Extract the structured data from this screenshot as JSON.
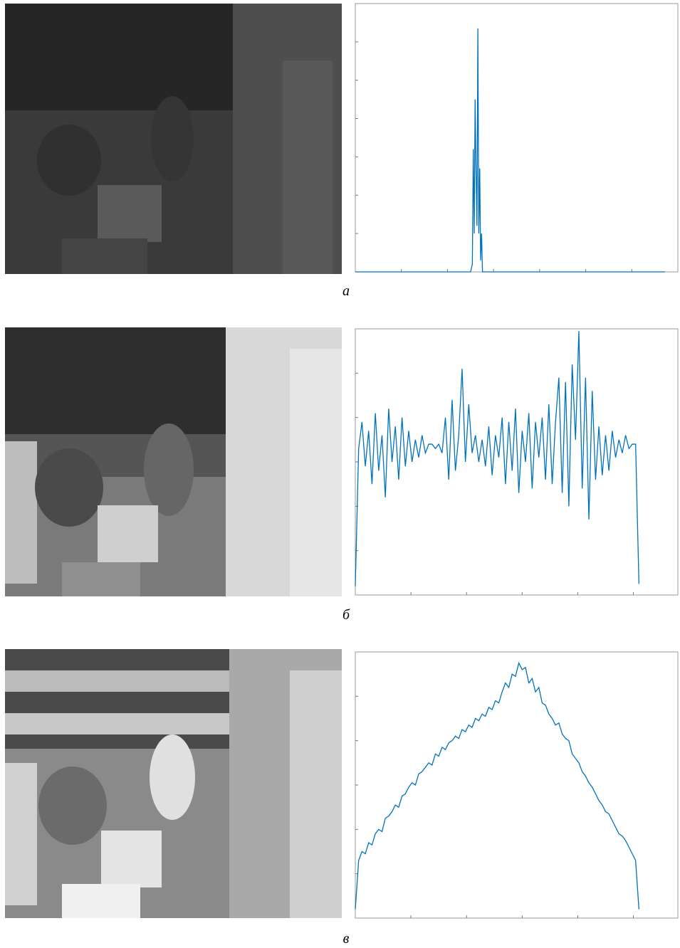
{
  "chart_data": [
    {
      "type": "line",
      "caption": "а",
      "color": "#0072bd",
      "x": [
        0,
        250,
        254,
        256,
        258,
        260,
        262,
        264,
        266,
        268,
        270,
        272,
        274,
        276,
        672
      ],
      "values": [
        0,
        0,
        200,
        3200,
        1000,
        4500,
        2600,
        1200,
        6350,
        1000,
        2700,
        300,
        1000,
        0,
        0
      ],
      "xlim": [
        0,
        700
      ],
      "ylim": [
        0,
        7000
      ],
      "xticks": [
        100,
        200,
        300,
        400,
        500,
        600
      ],
      "yticks": [
        1000,
        2000,
        3000,
        4000,
        5000,
        6000
      ]
    },
    {
      "type": "line",
      "caption": "б",
      "color": "#0072bd",
      "x": [
        0,
        6,
        12,
        18,
        24,
        30,
        36,
        42,
        48,
        54,
        60,
        66,
        72,
        78,
        84,
        90,
        96,
        102,
        108,
        114,
        120,
        126,
        132,
        138,
        144,
        150,
        156,
        162,
        168,
        174,
        180,
        186,
        192,
        198,
        204,
        210,
        216,
        222,
        228,
        234,
        240,
        246,
        252,
        258,
        264,
        270,
        276,
        282,
        288,
        294,
        300,
        306,
        312,
        318,
        324,
        330,
        336,
        342,
        348,
        354,
        360,
        366,
        372,
        378,
        384,
        390,
        396,
        402,
        408,
        414,
        420,
        426,
        432,
        438,
        444,
        450,
        456,
        462,
        468,
        474,
        480,
        486,
        492,
        498,
        504,
        510
      ],
      "values": [
        0.2,
        3.3,
        3.9,
        2.9,
        3.7,
        2.5,
        4.1,
        2.8,
        3.6,
        2.2,
        4.2,
        3.0,
        3.8,
        2.6,
        4.0,
        2.9,
        3.7,
        3.0,
        3.5,
        3.1,
        3.6,
        3.2,
        3.4,
        3.4,
        3.3,
        3.4,
        3.2,
        4.0,
        2.6,
        4.4,
        2.8,
        3.6,
        5.1,
        3.0,
        4.3,
        3.2,
        3.6,
        3.0,
        3.5,
        2.9,
        3.8,
        2.7,
        3.6,
        3.1,
        4.0,
        2.5,
        3.9,
        2.8,
        4.2,
        2.3,
        3.7,
        3.0,
        4.1,
        2.4,
        3.9,
        3.1,
        4.0,
        2.6,
        4.3,
        2.5,
        3.9,
        4.9,
        2.3,
        4.8,
        2.0,
        5.2,
        3.5,
        5.95,
        2.4,
        4.9,
        1.7,
        4.6,
        2.6,
        3.8,
        2.7,
        3.6,
        2.8,
        3.7,
        3.1,
        3.5,
        3.2,
        3.6,
        3.3,
        3.4,
        3.4,
        0.25
      ],
      "xlim": [
        0,
        580
      ],
      "ylim": [
        0,
        6
      ],
      "xticks": [
        100,
        200,
        300,
        400,
        500
      ],
      "yticks": [
        1,
        2,
        3,
        4,
        5
      ]
    },
    {
      "type": "line",
      "caption": "в",
      "color": "#0072bd",
      "x": [
        0,
        6,
        12,
        18,
        24,
        30,
        36,
        42,
        48,
        54,
        60,
        66,
        72,
        78,
        84,
        90,
        96,
        102,
        108,
        114,
        120,
        126,
        132,
        138,
        144,
        150,
        156,
        162,
        168,
        174,
        180,
        186,
        192,
        198,
        204,
        210,
        216,
        222,
        228,
        234,
        240,
        246,
        252,
        258,
        264,
        270,
        276,
        282,
        288,
        294,
        300,
        306,
        312,
        318,
        324,
        330,
        336,
        342,
        348,
        354,
        360,
        366,
        372,
        378,
        384,
        390,
        396,
        402,
        408,
        414,
        420,
        426,
        432,
        438,
        444,
        450,
        456,
        462,
        468,
        474,
        480,
        486,
        492,
        498,
        504,
        510
      ],
      "values": [
        0.2,
        1.3,
        1.5,
        1.45,
        1.7,
        1.65,
        1.9,
        2.0,
        1.95,
        2.25,
        2.3,
        2.4,
        2.55,
        2.5,
        2.75,
        2.8,
        2.95,
        3.05,
        3.0,
        3.25,
        3.3,
        3.4,
        3.5,
        3.45,
        3.7,
        3.65,
        3.85,
        3.8,
        3.95,
        4.0,
        4.1,
        4.05,
        4.25,
        4.2,
        4.35,
        4.3,
        4.5,
        4.45,
        4.6,
        4.55,
        4.75,
        4.7,
        4.9,
        4.85,
        5.1,
        5.3,
        5.2,
        5.5,
        5.45,
        5.75,
        5.6,
        5.65,
        5.3,
        5.4,
        5.1,
        5.2,
        4.85,
        4.8,
        4.6,
        4.5,
        4.35,
        4.4,
        4.15,
        4.05,
        4.0,
        3.7,
        3.6,
        3.5,
        3.3,
        3.2,
        3.05,
        2.95,
        2.8,
        2.65,
        2.55,
        2.4,
        2.35,
        2.2,
        2.05,
        1.9,
        1.85,
        1.75,
        1.6,
        1.45,
        1.3,
        0.2
      ],
      "xlim": [
        0,
        580
      ],
      "ylim": [
        0,
        6
      ],
      "xticks": [
        100,
        200,
        300,
        400,
        500
      ],
      "yticks": [
        1,
        2,
        3,
        4,
        5
      ]
    }
  ]
}
